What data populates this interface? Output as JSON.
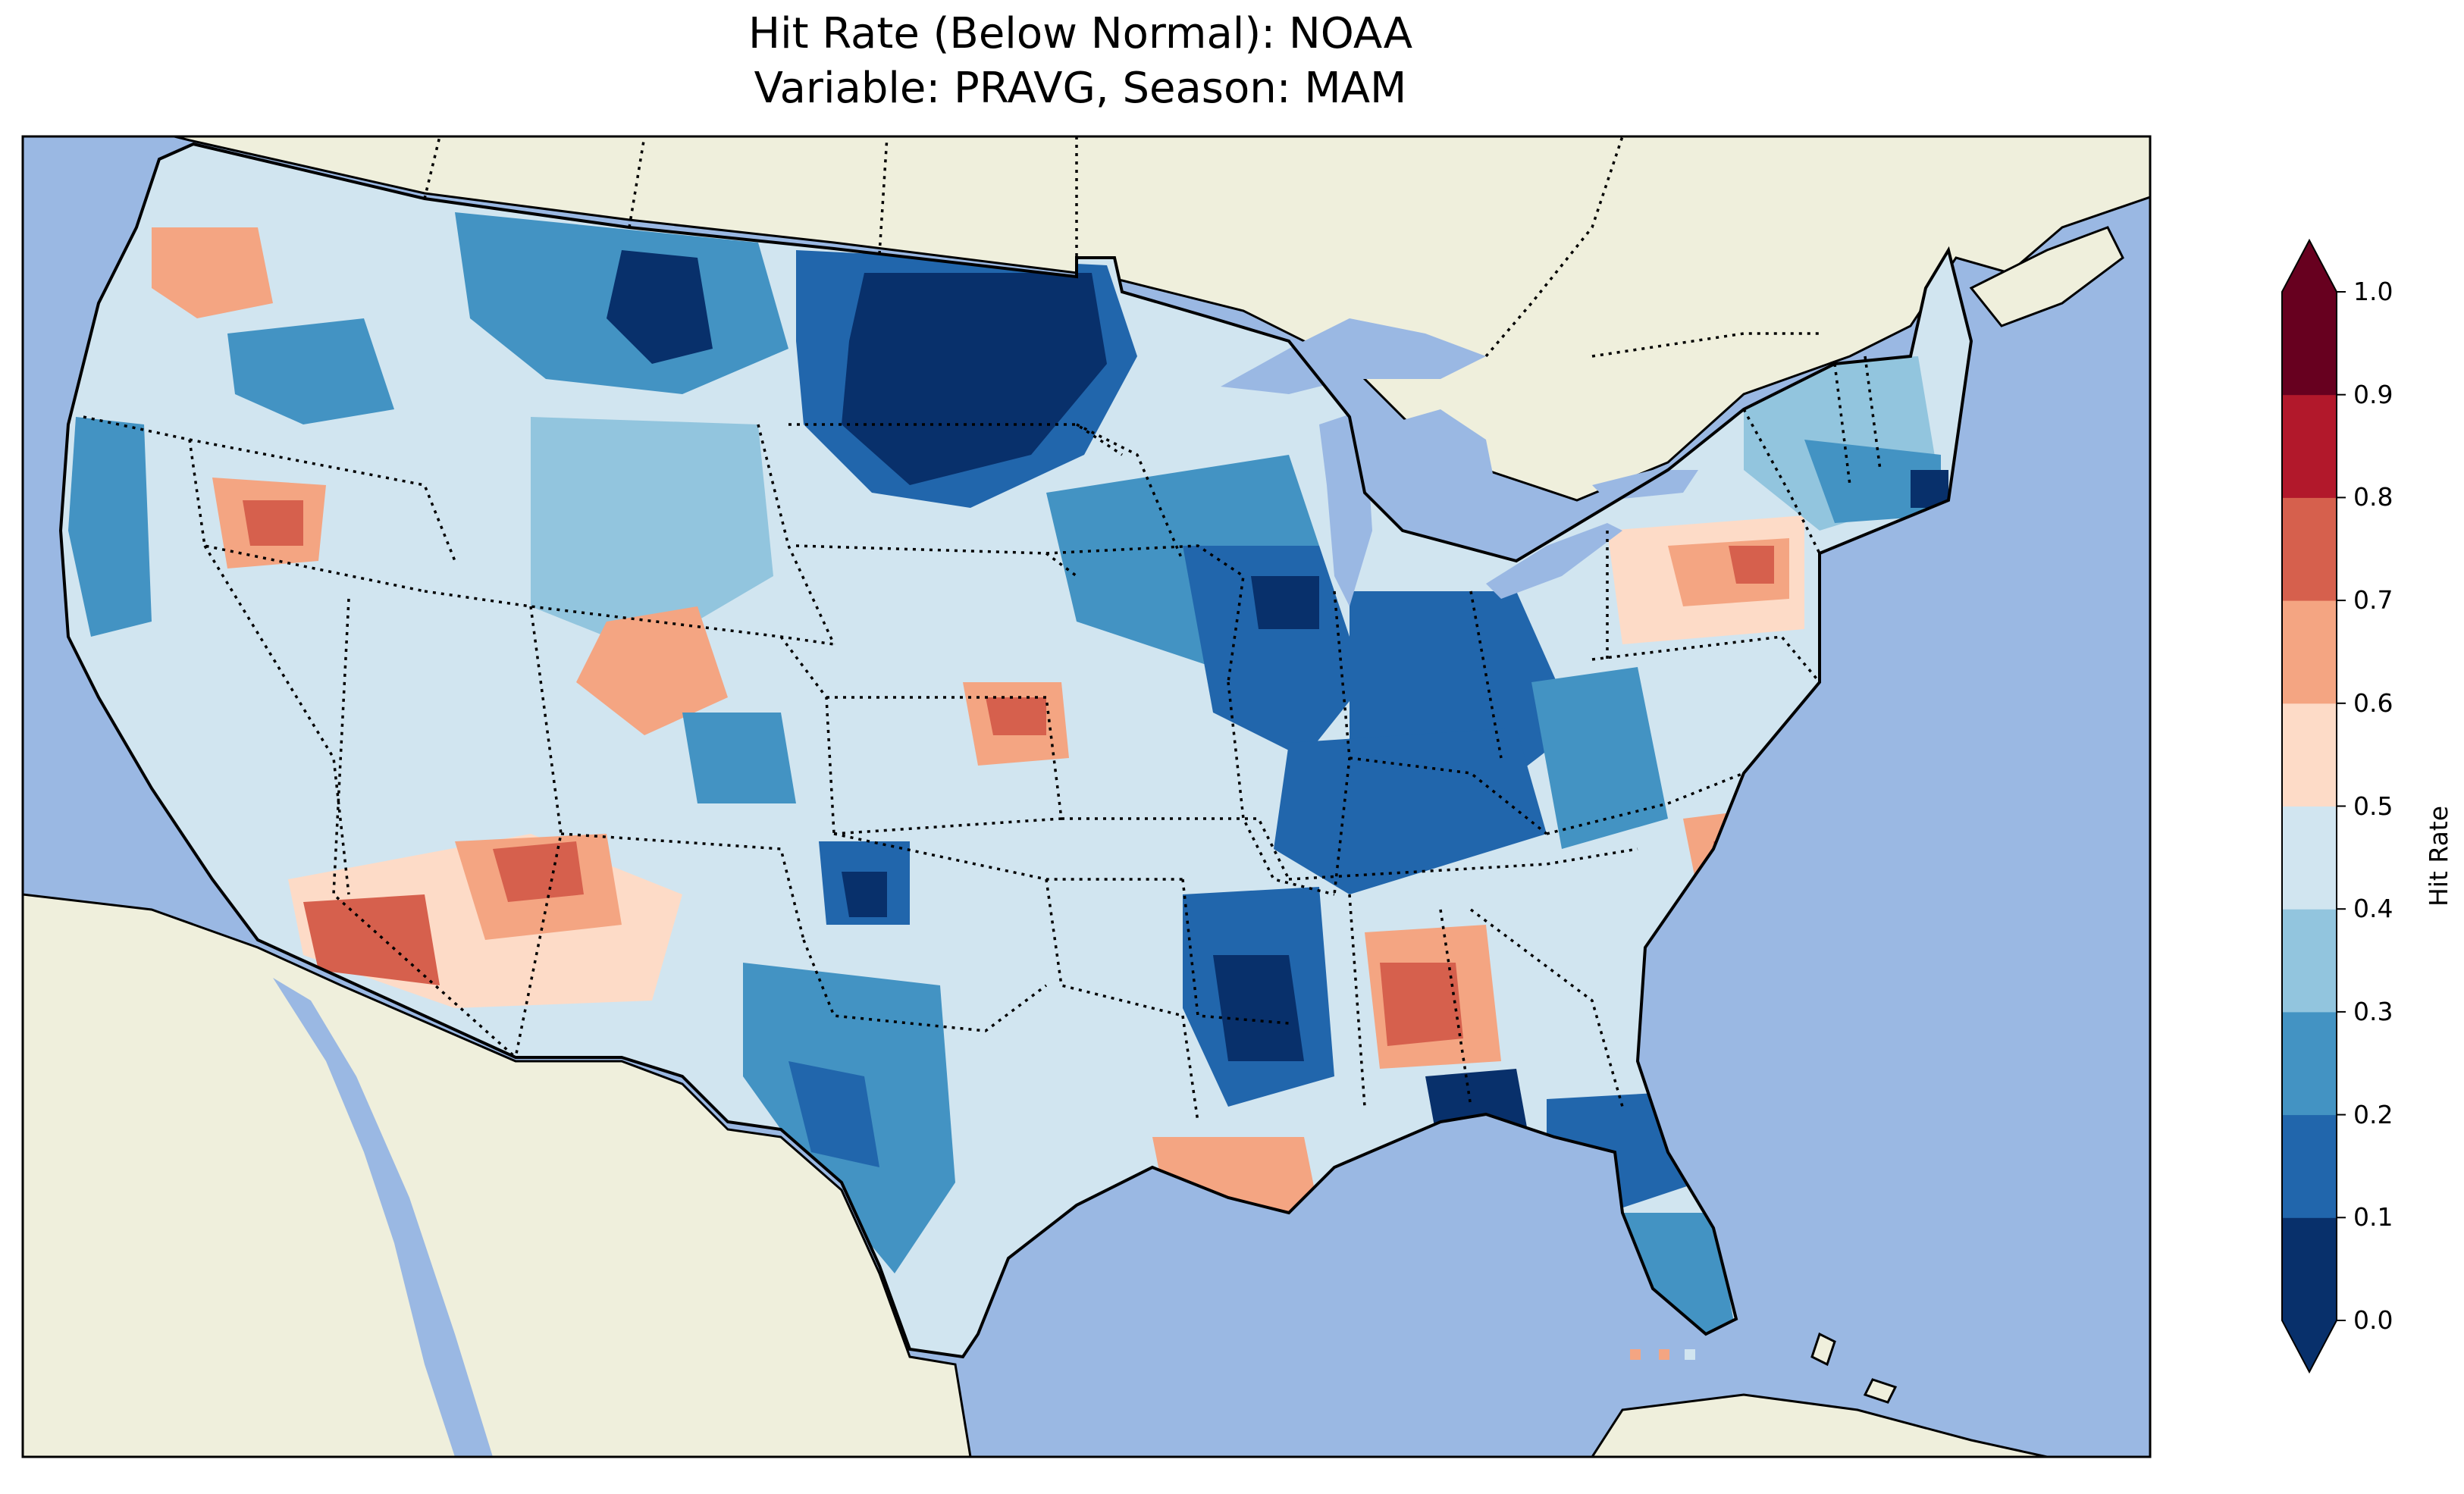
{
  "title": {
    "line1": "Hit Rate (Below Normal): NOAA",
    "line2": "Variable: PRAVG, Season: MAM"
  },
  "colorbar": {
    "label": "Hit Rate",
    "ticks": [
      "0.0",
      "0.1",
      "0.2",
      "0.3",
      "0.4",
      "0.5",
      "0.6",
      "0.7",
      "0.8",
      "0.9",
      "1.0"
    ],
    "extend": "both",
    "colors": [
      "#08306b",
      "#2166ac",
      "#4393c3",
      "#92c5de",
      "#d1e5f0",
      "#fddbc7",
      "#f4a582",
      "#d6604d",
      "#b2182b",
      "#67001f"
    ]
  },
  "map": {
    "ocean_color": "#9ab8e3",
    "land_color": "#efefdc",
    "region": "contiguous-united-states",
    "projection": "plate-carree",
    "borders": "state-borders-dotted"
  }
}
